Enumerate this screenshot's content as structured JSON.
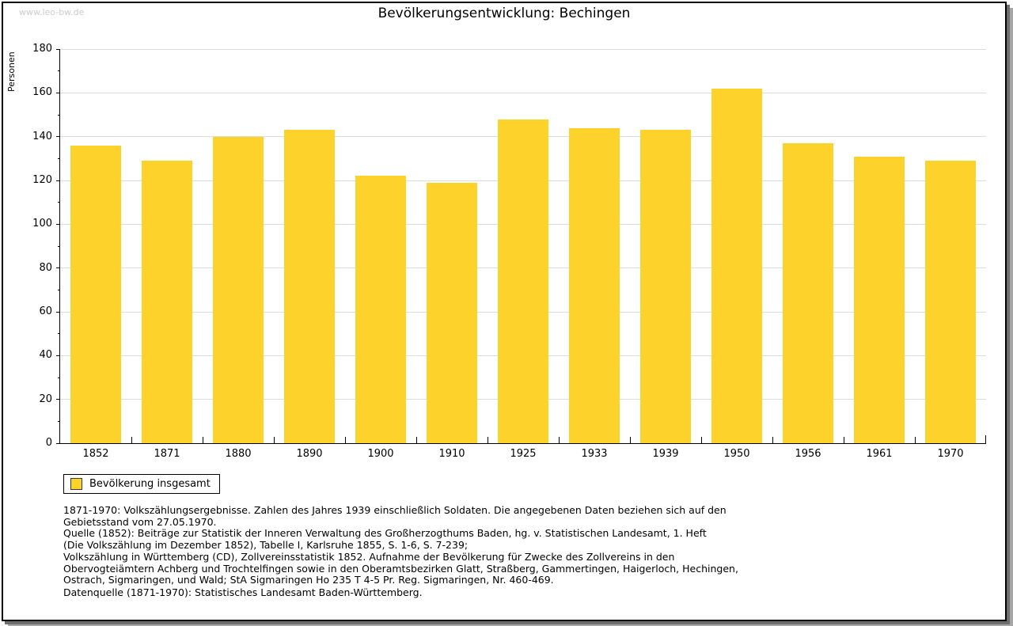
{
  "page": {
    "watermark": "www.leo-bw.de"
  },
  "chart_data": {
    "type": "bar",
    "title": "Bevölkerungsentwicklung: Bechingen",
    "xlabel": "",
    "ylabel": "Personen",
    "categories": [
      "1852",
      "1871",
      "1880",
      "1890",
      "1900",
      "1910",
      "1925",
      "1933",
      "1939",
      "1950",
      "1956",
      "1961",
      "1970"
    ],
    "values": [
      136,
      129,
      140,
      143,
      122,
      119,
      148,
      144,
      143,
      162,
      137,
      131,
      129
    ],
    "ylim": [
      0,
      180
    ],
    "ytick_step": 20,
    "ytick_minor_step": 10,
    "grid": true,
    "legend_position": "bottom-left",
    "legend": [
      {
        "label": "Bevölkerung insgesamt",
        "color": "#fdd32b"
      }
    ],
    "colors": {
      "bar": "#fdd32b",
      "gridline": "#dcdcdc",
      "axis": "#000000",
      "watermark": "#cccccc"
    }
  },
  "footer": {
    "lines": [
      "1871-1970: Volkszählungsergebnisse. Zahlen des Jahres 1939 einschließlich Soldaten. Die angegebenen Daten beziehen sich auf den",
      "Gebietsstand vom 27.05.1970.",
      "Quelle (1852): Beiträge zur Statistik der Inneren Verwaltung des Großherzogthums Baden, hg. v. Statistischen Landesamt, 1. Heft",
      "(Die Volkszählung im Dezember 1852), Tabelle I, Karlsruhe 1855, S. 1-6, S. 7-239;",
      "Volkszählung in Württemberg (CD), Zollvereinsstatistik 1852. Aufnahme der Bevölkerung für Zwecke des Zollvereins in den",
      "Obervogteiämtern Achberg und Trochtelfingen sowie in den Oberamtsbezirken Glatt, Straßberg, Gammertingen, Haigerloch, Hechingen,",
      "Ostrach, Sigmaringen, und Wald; StA Sigmaringen Ho 235 T 4-5 Pr. Reg. Sigmaringen, Nr. 460-469."
    ],
    "datasource": "Datenquelle (1871-1970): Statistisches Landesamt Baden-Württemberg."
  }
}
